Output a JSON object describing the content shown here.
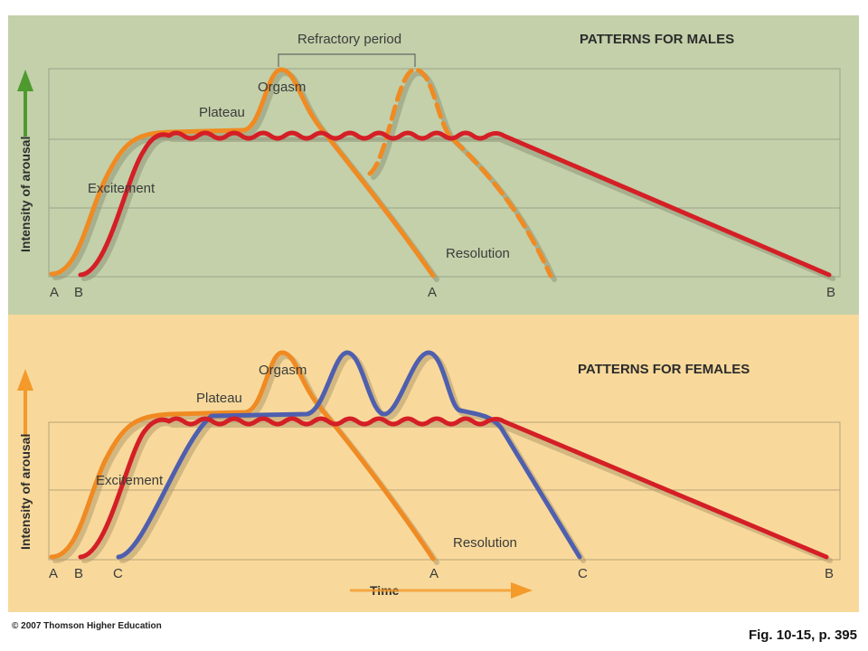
{
  "male_panel": {
    "title": "PATTERNS FOR MALES",
    "y_axis_label": "Intensity of arousal",
    "labels": {
      "refractory": "Refractory period",
      "orgasm": "Orgasm",
      "plateau": "Plateau",
      "excitement": "Excitement",
      "resolution": "Resolution"
    },
    "x_markers": [
      "A",
      "B",
      "A",
      "B"
    ],
    "colors": {
      "background": "#c3d0a9",
      "pattern_a": "#f08a22",
      "pattern_b": "#d41f26",
      "arrow": "#4e9a2f"
    }
  },
  "female_panel": {
    "title": "PATTERNS FOR FEMALES",
    "y_axis_label": "Intensity of arousal",
    "labels": {
      "orgasm": "Orgasm",
      "plateau": "Plateau",
      "excitement": "Excitement",
      "resolution": "Resolution"
    },
    "x_markers": [
      "A",
      "B",
      "C",
      "A",
      "C",
      "B"
    ],
    "x_axis_label": "Time",
    "colors": {
      "background": "#f8d99b",
      "pattern_a": "#f08a22",
      "pattern_b": "#d41f26",
      "pattern_c": "#4f5fae",
      "arrow": "#f39a2a"
    }
  },
  "footer": {
    "copyright": "© 2007 Thomson Higher Education",
    "figure_ref": "Fig. 10-15, p. 395"
  }
}
